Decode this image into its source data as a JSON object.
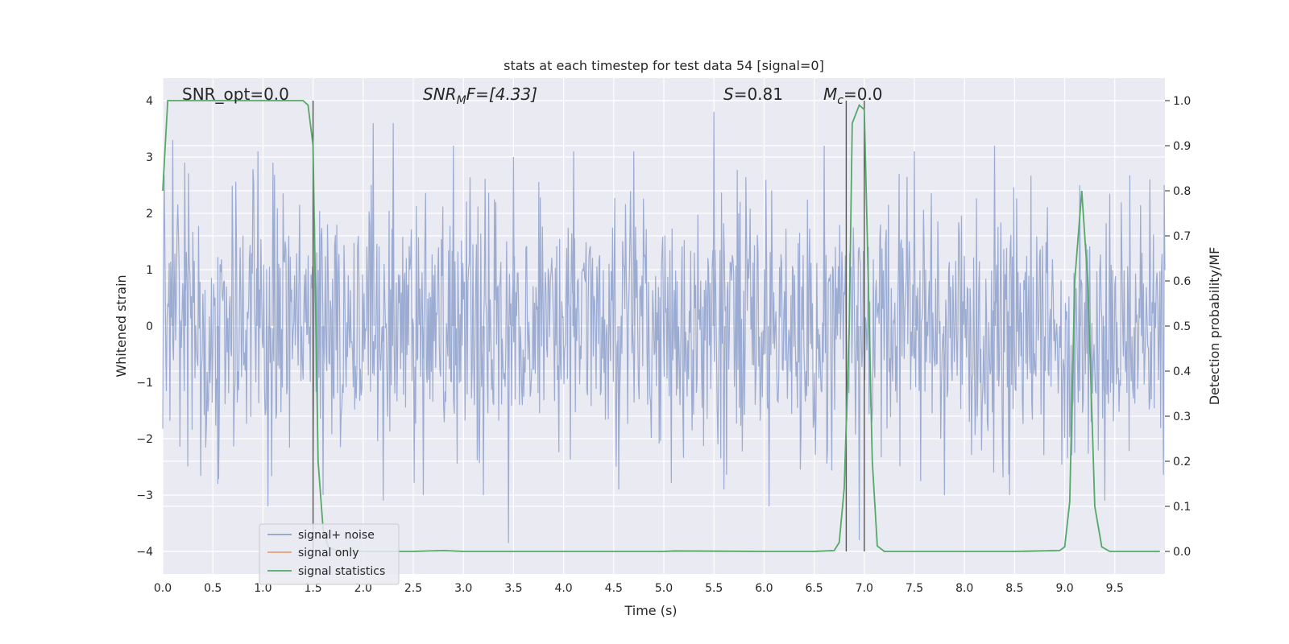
{
  "chart_data": {
    "type": "line",
    "title": "stats at each timestep for test data 54 [signal=0]",
    "xlabel": "Time (s)",
    "ylabel": "Whitened strain",
    "y2label": "Detection probability/MF",
    "xlim": [
      0,
      10
    ],
    "ylim": [
      -4.4,
      4.4
    ],
    "y2lim": [
      -0.05,
      1.05
    ],
    "xticks": [
      "0.0",
      "0.5",
      "1.0",
      "1.5",
      "2.0",
      "2.5",
      "3.0",
      "3.5",
      "4.0",
      "4.5",
      "5.0",
      "5.5",
      "6.0",
      "6.5",
      "7.0",
      "7.5",
      "8.0",
      "8.5",
      "9.0",
      "9.5"
    ],
    "yticks": [
      "−4",
      "−3",
      "−2",
      "−1",
      "0",
      "1",
      "2",
      "3",
      "4"
    ],
    "y2ticks": [
      "0.0",
      "0.1",
      "0.2",
      "0.3",
      "0.4",
      "0.5",
      "0.6",
      "0.7",
      "0.8",
      "0.9",
      "1.0"
    ],
    "grid": true,
    "legend_position": "lower-left",
    "annotations": {
      "snr_opt": "SNR_opt=0.0",
      "snr_mf_base": "SNR",
      "snr_mf_sub": "M",
      "snr_mf_rest": "F=[4.33]",
      "s_label": "S",
      "s_value": "=0.81",
      "mc_label": "M",
      "mc_sub": "c",
      "mc_value": "=0.0"
    },
    "series": [
      {
        "name": "signal+ noise",
        "color": "#8da0cb",
        "note": "dense whitened noise, approx. ±1.6 core with peaks to about ±3.8",
        "envelope_typical": 1.6,
        "peak_samples": [
          [
            0.1,
            3.3
          ],
          [
            0.22,
            2.9
          ],
          [
            0.55,
            -2.8
          ],
          [
            0.95,
            3.1
          ],
          [
            1.05,
            -3.2
          ],
          [
            1.1,
            2.9
          ],
          [
            1.6,
            -3.0
          ],
          [
            2.1,
            3.6
          ],
          [
            2.2,
            -3.1
          ],
          [
            2.3,
            3.6
          ],
          [
            2.6,
            -3.0
          ],
          [
            2.9,
            3.2
          ],
          [
            3.2,
            -3.0
          ],
          [
            3.45,
            -3.85
          ],
          [
            3.5,
            3.0
          ],
          [
            4.1,
            3.1
          ],
          [
            4.55,
            -2.9
          ],
          [
            4.7,
            3.1
          ],
          [
            5.5,
            3.8
          ],
          [
            5.6,
            -2.9
          ],
          [
            6.05,
            -3.2
          ],
          [
            6.6,
            3.2
          ],
          [
            6.95,
            -3.8
          ],
          [
            7.5,
            3.1
          ],
          [
            7.8,
            -3.0
          ],
          [
            8.3,
            3.2
          ],
          [
            8.45,
            -3.0
          ],
          [
            9.15,
            2.5
          ],
          [
            9.4,
            -3.1
          ],
          [
            9.85,
            2.6
          ]
        ]
      },
      {
        "name": "signal only",
        "color": "#e8a07a",
        "values": []
      },
      {
        "name": "signal statistics",
        "color": "#55a868",
        "axis": "right",
        "points": [
          [
            0.0,
            0.8
          ],
          [
            0.05,
            1.0
          ],
          [
            0.1,
            1.0
          ],
          [
            0.5,
            1.0
          ],
          [
            1.0,
            1.0
          ],
          [
            1.4,
            1.0
          ],
          [
            1.45,
            0.99
          ],
          [
            1.5,
            0.9
          ],
          [
            1.55,
            0.2
          ],
          [
            1.6,
            0.05
          ],
          [
            1.65,
            0.01
          ],
          [
            1.75,
            0.0
          ],
          [
            2.0,
            0.0
          ],
          [
            2.5,
            0.0
          ],
          [
            2.8,
            0.002
          ],
          [
            3.0,
            0.0
          ],
          [
            4.0,
            0.0
          ],
          [
            5.0,
            0.0
          ],
          [
            5.1,
            0.001
          ],
          [
            6.0,
            0.0
          ],
          [
            6.5,
            0.0
          ],
          [
            6.7,
            0.002
          ],
          [
            6.75,
            0.02
          ],
          [
            6.8,
            0.14
          ],
          [
            6.85,
            0.5
          ],
          [
            6.88,
            0.95
          ],
          [
            6.95,
            0.99
          ],
          [
            7.0,
            0.98
          ],
          [
            7.03,
            0.7
          ],
          [
            7.08,
            0.2
          ],
          [
            7.13,
            0.012
          ],
          [
            7.2,
            0.0
          ],
          [
            7.5,
            0.0
          ],
          [
            8.0,
            0.0
          ],
          [
            8.5,
            0.0
          ],
          [
            8.95,
            0.002
          ],
          [
            9.0,
            0.01
          ],
          [
            9.05,
            0.11
          ],
          [
            9.1,
            0.6
          ],
          [
            9.17,
            0.8
          ],
          [
            9.23,
            0.6
          ],
          [
            9.3,
            0.1
          ],
          [
            9.37,
            0.01
          ],
          [
            9.45,
            0.0
          ],
          [
            9.6,
            0.0
          ],
          [
            9.95,
            0.0
          ]
        ]
      }
    ],
    "vertical_lines_x": [
      1.5,
      6.82,
      7.0
    ]
  }
}
